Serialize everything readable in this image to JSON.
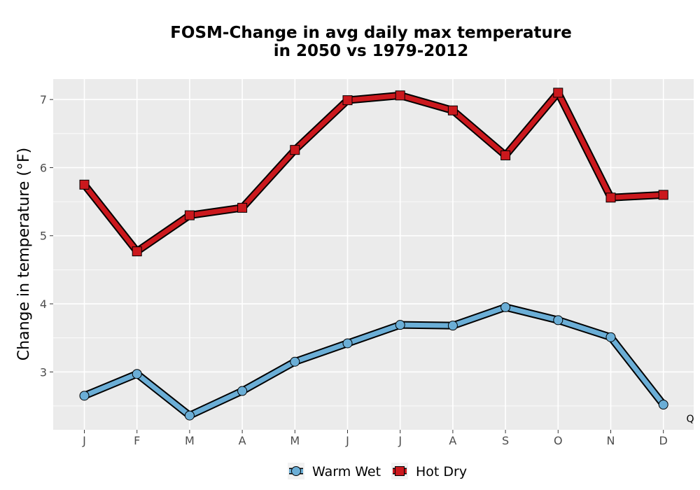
{
  "chart_data": {
    "type": "line",
    "title_line1": "FOSM-Change in avg daily max temperature",
    "title_line2": "in 2050 vs 1979-2012",
    "xlabel": "",
    "ylabel": "Change in temperature (°F)",
    "categories": [
      "J",
      "F",
      "M",
      "A",
      "M",
      "J",
      "J",
      "A",
      "S",
      "O",
      "N",
      "D"
    ],
    "ylim": [
      2.15,
      7.3
    ],
    "yticks": [
      3,
      4,
      5,
      6,
      7
    ],
    "grid": true,
    "legend_position": "bottom",
    "corner_label": "Q",
    "series": [
      {
        "name": "Warm Wet",
        "marker": "circle",
        "color": "#6baed6",
        "values": [
          2.65,
          2.97,
          2.36,
          2.72,
          3.15,
          3.42,
          3.69,
          3.68,
          3.95,
          3.76,
          3.51,
          2.52
        ]
      },
      {
        "name": "Hot Dry",
        "marker": "square",
        "color": "#cb181d",
        "values": [
          5.75,
          4.77,
          5.3,
          5.41,
          6.26,
          6.99,
          7.06,
          6.84,
          6.18,
          7.1,
          5.56,
          5.6
        ]
      }
    ]
  }
}
